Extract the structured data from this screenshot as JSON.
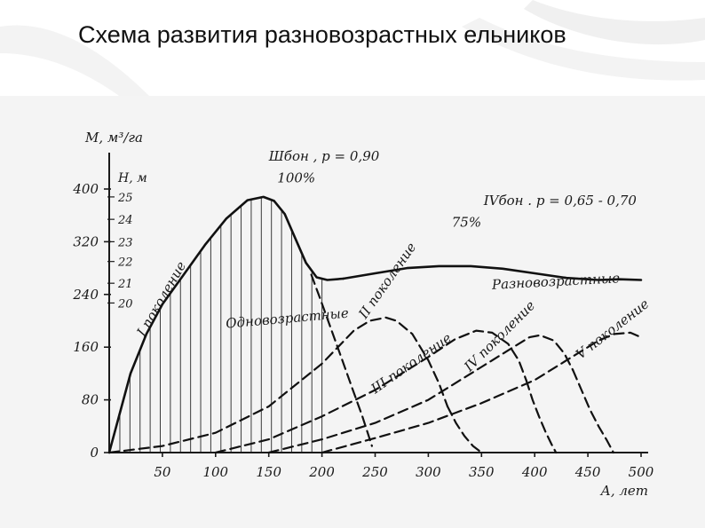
{
  "slide": {
    "title": "Схема развития разновозрастных ельников"
  },
  "chart_data": {
    "type": "line",
    "xlabel": "А, лет",
    "ylabel": "М, м³/га",
    "ylabel2": "Н, м",
    "xlim": [
      0,
      500
    ],
    "ylim": [
      0,
      400
    ],
    "x_ticks": [
      50,
      100,
      150,
      200,
      250,
      300,
      350,
      400,
      450,
      500
    ],
    "y_ticks": [
      0,
      80,
      160,
      240,
      320,
      400
    ],
    "h_ticks": [
      {
        "label": "25",
        "m": 388
      },
      {
        "label": "24",
        "m": 354
      },
      {
        "label": "23",
        "m": 320
      },
      {
        "label": "22",
        "m": 290
      },
      {
        "label": "21",
        "m": 257
      },
      {
        "label": "20",
        "m": 227
      }
    ],
    "annotations": [
      {
        "text": "Шбон , р = 0,90",
        "x": 150,
        "y": 443
      },
      {
        "text": "100%",
        "x": 158,
        "y": 410
      },
      {
        "text": "IVбон . р = 0,65 - 0,70",
        "x": 352,
        "y": 376
      },
      {
        "text": "75%",
        "x": 322,
        "y": 343
      },
      {
        "text": "Разновозрастные",
        "x": 360,
        "y": 248,
        "rotate": -3
      },
      {
        "text": "Одновозрастные",
        "x": 110,
        "y": 189,
        "rotate": -5
      },
      {
        "text": "I поколение",
        "x": 33,
        "y": 175,
        "rotate": -60
      },
      {
        "text": "II поколение",
        "x": 241,
        "y": 202,
        "rotate": -55
      },
      {
        "text": "III поколение",
        "x": 250,
        "y": 89,
        "rotate": -35
      },
      {
        "text": "IV поколение",
        "x": 339,
        "y": 122,
        "rotate": -45
      },
      {
        "text": "V поколение",
        "x": 443,
        "y": 141,
        "rotate": -38
      }
    ],
    "series": [
      {
        "name": "Одновозрастные",
        "style": "solid",
        "x": [
          0,
          10,
          20,
          35,
          50,
          70,
          90,
          110,
          130,
          145,
          155,
          165,
          175,
          185,
          195,
          205,
          220
        ],
        "y": [
          0,
          60,
          120,
          180,
          225,
          270,
          315,
          355,
          383,
          388,
          382,
          362,
          325,
          288,
          266,
          262,
          264
        ]
      },
      {
        "name": "Разновозрастные",
        "style": "solid",
        "x": [
          220,
          250,
          280,
          310,
          340,
          370,
          400,
          430,
          460,
          480,
          500
        ],
        "y": [
          264,
          272,
          280,
          283,
          283,
          279,
          272,
          265,
          262,
          263,
          262
        ]
      },
      {
        "name": "II поколение",
        "style": "dashed",
        "x": [
          0,
          50,
          100,
          150,
          200,
          230,
          245,
          260,
          270,
          285,
          300,
          310,
          318
        ],
        "y": [
          0,
          10,
          30,
          70,
          135,
          185,
          200,
          205,
          200,
          180,
          140,
          105,
          70
        ]
      },
      {
        "name": "III поколение",
        "style": "dashed",
        "x": [
          100,
          150,
          200,
          250,
          300,
          325,
          345,
          360,
          375,
          385,
          392
        ],
        "y": [
          0,
          20,
          55,
          95,
          145,
          172,
          185,
          182,
          165,
          140,
          110
        ]
      },
      {
        "name": "IV поколение",
        "style": "dashed",
        "x": [
          150,
          200,
          250,
          300,
          350,
          380,
          395,
          405,
          418,
          428,
          436
        ],
        "y": [
          0,
          20,
          45,
          80,
          130,
          160,
          175,
          178,
          170,
          150,
          125
        ]
      },
      {
        "name": "V поколение",
        "style": "dashed",
        "x": [
          200,
          250,
          300,
          350,
          400,
          440,
          460,
          475,
          490,
          500
        ],
        "y": [
          0,
          22,
          45,
          75,
          110,
          150,
          170,
          180,
          182,
          175
        ]
      },
      {
        "name": "спад одновозрастного",
        "style": "dashed",
        "x": [
          190,
          198,
          208,
          218,
          228,
          238,
          247
        ],
        "y": [
          270,
          235,
          190,
          145,
          100,
          55,
          10
        ]
      },
      {
        "name": "спад II поколения",
        "style": "dashed",
        "x": [
          318,
          326,
          334,
          342,
          350
        ],
        "y": [
          70,
          45,
          25,
          10,
          0
        ]
      },
      {
        "name": "спад III поколения",
        "style": "dashed",
        "x": [
          392,
          398,
          404,
          410,
          416,
          420
        ],
        "y": [
          110,
          80,
          55,
          32,
          12,
          0
        ]
      },
      {
        "name": "спад IV поколения",
        "style": "dashed",
        "x": [
          436,
          444,
          452,
          460,
          468,
          474
        ],
        "y": [
          125,
          95,
          65,
          40,
          18,
          0
        ]
      }
    ],
    "hatch": {
      "from": 10,
      "to": 205,
      "step": 9.5
    }
  }
}
